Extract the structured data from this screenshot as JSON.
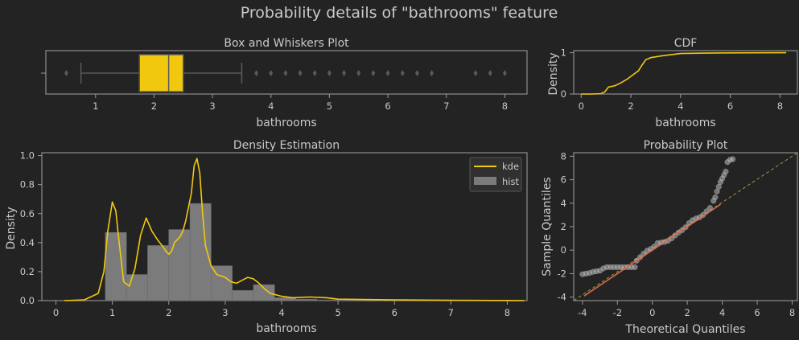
{
  "figure": {
    "suptitle": "Probability details of \"bathrooms\" feature"
  },
  "colors": {
    "background": "#232323",
    "accent": "#f2c80f",
    "hist": "#7b7b7b",
    "qq_points": "#c0c0c0",
    "qq_fit": "#d9694a",
    "text": "#c9c9c9"
  },
  "chart_data": [
    {
      "id": "box",
      "type": "box",
      "title": "Box and Whiskers Plot",
      "xlabel": "bathrooms",
      "xlim": [
        0.15,
        8.38
      ],
      "xticks": [
        1,
        2,
        3,
        4,
        5,
        6,
        7,
        8
      ],
      "stats": {
        "whisker_low": 0.75,
        "q1": 1.75,
        "median": 2.25,
        "q3": 2.5,
        "whisker_high": 3.5
      },
      "outliers": [
        0.5,
        3.75,
        4.0,
        4.25,
        4.5,
        4.75,
        5.0,
        5.25,
        5.5,
        5.75,
        6.0,
        6.25,
        6.5,
        6.75,
        7.5,
        7.75,
        8.0
      ]
    },
    {
      "id": "cdf",
      "type": "line",
      "title": "CDF",
      "xlabel": "bathrooms",
      "ylabel": "Density",
      "xlim": [
        -0.3,
        8.7
      ],
      "ylim": [
        0,
        1.05
      ],
      "xticks": [
        0,
        2,
        4,
        6,
        8
      ],
      "yticks": [
        0,
        1
      ],
      "x": [
        0,
        0.4,
        0.8,
        0.95,
        1.1,
        1.35,
        1.6,
        1.85,
        2.05,
        2.3,
        2.45,
        2.6,
        2.8,
        3.2,
        3.6,
        4.0,
        5.0,
        6.0,
        7.0,
        8.25
      ],
      "y": [
        0,
        0,
        0.01,
        0.05,
        0.17,
        0.2,
        0.27,
        0.36,
        0.45,
        0.56,
        0.7,
        0.83,
        0.88,
        0.92,
        0.95,
        0.98,
        0.99,
        0.995,
        0.998,
        1.0
      ]
    },
    {
      "id": "density",
      "type": "bar",
      "title": "Density Estimation",
      "xlabel": "bathrooms",
      "ylabel": "Density",
      "xlim": [
        -0.25,
        8.35
      ],
      "ylim": [
        0,
        1.02
      ],
      "xticks": [
        0,
        1,
        2,
        3,
        4,
        5,
        6,
        7,
        8
      ],
      "yticks": [
        0.0,
        0.2,
        0.4,
        0.6,
        0.8,
        1.0
      ],
      "legend": [
        "kde",
        "hist"
      ],
      "legend_position": "top-right",
      "hist": {
        "edges": [
          0.875,
          1.25,
          1.625,
          2.0,
          2.375,
          2.75,
          3.125,
          3.5,
          3.875,
          4.25,
          4.625,
          5.0
        ],
        "values": [
          0.47,
          0.18,
          0.38,
          0.49,
          0.67,
          0.24,
          0.07,
          0.11,
          0.02,
          0.01,
          0.005
        ]
      },
      "kde": {
        "x": [
          0.15,
          0.5,
          0.75,
          0.85,
          0.92,
          1.0,
          1.06,
          1.12,
          1.2,
          1.3,
          1.4,
          1.5,
          1.6,
          1.7,
          1.8,
          1.9,
          1.95,
          2.0,
          2.05,
          2.1,
          2.2,
          2.25,
          2.3,
          2.4,
          2.45,
          2.5,
          2.55,
          2.6,
          2.65,
          2.75,
          2.85,
          3.0,
          3.1,
          3.2,
          3.3,
          3.4,
          3.5,
          3.6,
          3.7,
          3.8,
          3.9,
          4.0,
          4.2,
          4.5,
          4.8,
          5.0,
          6.0,
          7.0,
          8.3
        ],
        "y": [
          0.0,
          0.005,
          0.05,
          0.2,
          0.48,
          0.68,
          0.62,
          0.4,
          0.13,
          0.1,
          0.22,
          0.45,
          0.57,
          0.48,
          0.42,
          0.37,
          0.34,
          0.32,
          0.34,
          0.4,
          0.44,
          0.48,
          0.55,
          0.74,
          0.93,
          0.98,
          0.88,
          0.6,
          0.38,
          0.24,
          0.18,
          0.16,
          0.13,
          0.12,
          0.14,
          0.16,
          0.15,
          0.12,
          0.08,
          0.05,
          0.04,
          0.03,
          0.02,
          0.025,
          0.02,
          0.01,
          0.005,
          0.003,
          0.0
        ]
      }
    },
    {
      "id": "qq",
      "type": "scatter",
      "title": "Probability Plot",
      "xlabel": "Theoretical Quantiles",
      "ylabel": "Sample Quantiles",
      "xlim": [
        -4.5,
        8.3
      ],
      "ylim": [
        -4.3,
        8.3
      ],
      "xticks": [
        -4,
        -2,
        0,
        2,
        4,
        6,
        8
      ],
      "yticks": [
        -4,
        -2,
        0,
        2,
        4,
        6,
        8
      ],
      "fit_line": {
        "x": [
          -3.9,
          3.9
        ],
        "y": [
          -3.9,
          3.9
        ]
      },
      "reference_line": {
        "x": [
          -4.5,
          8.3
        ],
        "y": [
          -4.3,
          8.3
        ]
      },
      "points": [
        [
          -4.0,
          -2.05
        ],
        [
          -3.8,
          -2.0
        ],
        [
          -3.6,
          -1.95
        ],
        [
          -3.4,
          -1.85
        ],
        [
          -3.2,
          -1.8
        ],
        [
          -3.0,
          -1.75
        ],
        [
          -2.8,
          -1.55
        ],
        [
          -2.6,
          -1.45
        ],
        [
          -2.4,
          -1.45
        ],
        [
          -2.2,
          -1.45
        ],
        [
          -2.0,
          -1.45
        ],
        [
          -1.8,
          -1.45
        ],
        [
          -1.6,
          -1.45
        ],
        [
          -1.4,
          -1.45
        ],
        [
          -1.2,
          -1.45
        ],
        [
          -1.0,
          -1.45
        ],
        [
          -0.9,
          -0.9
        ],
        [
          -0.7,
          -0.6
        ],
        [
          -0.5,
          -0.3
        ],
        [
          -0.3,
          -0.05
        ],
        [
          -0.1,
          0.1
        ],
        [
          0.1,
          0.3
        ],
        [
          0.3,
          0.6
        ],
        [
          0.5,
          0.65
        ],
        [
          0.7,
          0.7
        ],
        [
          0.9,
          0.8
        ],
        [
          1.1,
          1.0
        ],
        [
          1.3,
          1.25
        ],
        [
          1.5,
          1.5
        ],
        [
          1.7,
          1.7
        ],
        [
          1.9,
          1.95
        ],
        [
          2.1,
          2.3
        ],
        [
          2.3,
          2.55
        ],
        [
          2.5,
          2.7
        ],
        [
          2.7,
          2.8
        ],
        [
          2.9,
          3.0
        ],
        [
          3.1,
          3.3
        ],
        [
          3.3,
          3.6
        ],
        [
          3.5,
          4.2
        ],
        [
          3.6,
          4.5
        ],
        [
          3.7,
          5.0
        ],
        [
          3.8,
          5.4
        ],
        [
          3.9,
          5.8
        ],
        [
          4.0,
          6.1
        ],
        [
          4.1,
          6.4
        ],
        [
          4.2,
          6.7
        ],
        [
          4.3,
          7.5
        ],
        [
          4.45,
          7.7
        ],
        [
          4.6,
          7.75
        ]
      ]
    }
  ]
}
